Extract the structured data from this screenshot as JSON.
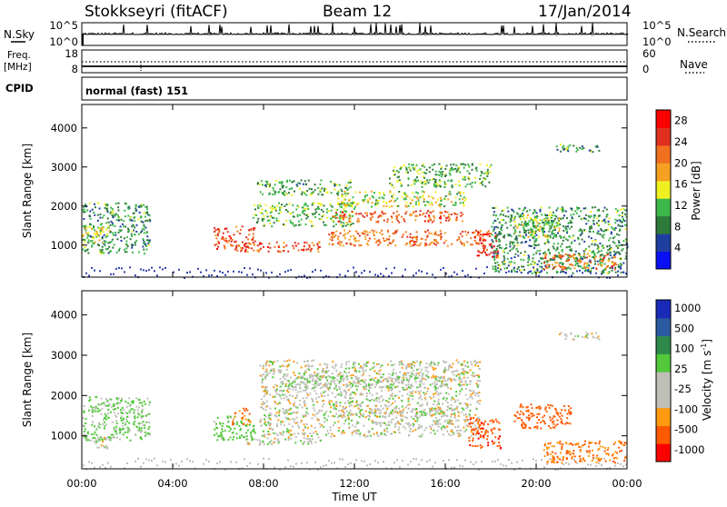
{
  "header": {
    "station": "Stokkseyri (fitACF)",
    "beam": "Beam 12",
    "date": "17/Jan/2014"
  },
  "noise_panel": {
    "left_label": "N.Sky",
    "right_label": "N.Search",
    "left_ticks": [
      "10^5",
      "10^0"
    ],
    "right_ticks": [
      "10^5",
      "10^0"
    ]
  },
  "freq_panel": {
    "left_label_line1": "Freq.",
    "left_label_line2": "[MHz]",
    "right_label": "Nave",
    "left_ticks": [
      "18",
      "8"
    ],
    "right_ticks": [
      "60",
      "0"
    ]
  },
  "cpid": {
    "label": "CPID",
    "value": "normal (fast) 151"
  },
  "colors": {
    "power": [
      "#0a10f5",
      "#1f3fa0",
      "#2e7a3a",
      "#3cb84a",
      "#f0f020",
      "#f5a020",
      "#f07020",
      "#e03020",
      "#ff0000"
    ],
    "velocity": [
      "#ff0000",
      "#ff5a00",
      "#ff9a10",
      "#bfbfb8",
      "#bfbfb8",
      "#52c83a",
      "#2e8a4a",
      "#2a5aa0",
      "#1a2ab8"
    ],
    "ground_scatter": "#bebeb8"
  },
  "chart_data": [
    {
      "type": "heatmap",
      "title": "",
      "xlabel": "Time UT",
      "ylabel": "Slant Range [km]",
      "x_ticks": [
        "00:00",
        "04:00",
        "08:00",
        "12:00",
        "16:00",
        "20:00",
        "00:00"
      ],
      "y_ticks": [
        "1000",
        "2000",
        "3000",
        "4000"
      ],
      "xlim_hours": [
        0,
        24
      ],
      "ylim_km": [
        180,
        4600
      ],
      "colorbar": {
        "label": "Power [dB]",
        "ticks": [
          "4",
          "8",
          "12",
          "16",
          "20",
          "24",
          "28"
        ],
        "range": [
          0,
          30
        ]
      },
      "regions": [
        {
          "t0": 0.0,
          "t1": 3.0,
          "r0": 800,
          "r1": 2100,
          "v": 9
        },
        {
          "t0": 0.0,
          "t1": 1.2,
          "r0": 1100,
          "r1": 1500,
          "v": 15
        },
        {
          "t0": 5.8,
          "t1": 7.6,
          "r0": 900,
          "r1": 1500,
          "v": 25
        },
        {
          "t0": 6.8,
          "t1": 10.5,
          "r0": 850,
          "r1": 1100,
          "v": 24
        },
        {
          "t0": 7.5,
          "t1": 12.0,
          "r0": 1500,
          "r1": 2100,
          "v": 11
        },
        {
          "t0": 7.7,
          "t1": 11.8,
          "r0": 2300,
          "r1": 2700,
          "v": 10
        },
        {
          "t0": 10.8,
          "t1": 18.0,
          "r0": 1000,
          "r1": 1400,
          "v": 22
        },
        {
          "t0": 11.0,
          "t1": 16.8,
          "r0": 1600,
          "r1": 1900,
          "v": 24
        },
        {
          "t0": 11.2,
          "t1": 17.0,
          "r0": 2000,
          "r1": 2400,
          "v": 14
        },
        {
          "t0": 13.5,
          "t1": 18.0,
          "r0": 2500,
          "r1": 3100,
          "v": 11
        },
        {
          "t0": 17.2,
          "t1": 18.3,
          "r0": 700,
          "r1": 1400,
          "v": 27
        },
        {
          "t0": 18.0,
          "t1": 24.0,
          "r0": 300,
          "r1": 2000,
          "v": 9
        },
        {
          "t0": 20.3,
          "t1": 23.5,
          "r0": 400,
          "r1": 800,
          "v": 22
        },
        {
          "t0": 19.0,
          "t1": 21.0,
          "r0": 1200,
          "r1": 1800,
          "v": 14
        },
        {
          "t0": 20.8,
          "t1": 22.8,
          "r0": 3400,
          "r1": 3600,
          "v": 9
        }
      ]
    },
    {
      "type": "heatmap",
      "title": "",
      "xlabel": "Time UT",
      "ylabel": "Slant Range [km]",
      "x_ticks": [
        "00:00",
        "04:00",
        "08:00",
        "12:00",
        "16:00",
        "20:00",
        "00:00"
      ],
      "y_ticks": [
        "1000",
        "2000",
        "3000",
        "4000"
      ],
      "xlim_hours": [
        0,
        24
      ],
      "ylim_km": [
        180,
        4600
      ],
      "colorbar": {
        "label": "Velocity [m s",
        "label_superscript": "-1",
        "label_suffix": "]",
        "ticks": [
          "-1000",
          "-500",
          "-100",
          "-25",
          "25",
          "100",
          "500",
          "1000"
        ]
      },
      "regions": [
        {
          "t0": 0.0,
          "t1": 3.0,
          "r0": 900,
          "r1": 2000,
          "v": 100
        },
        {
          "t0": 0.5,
          "t1": 1.5,
          "r0": 700,
          "r1": 1000,
          "v": 0
        },
        {
          "t0": 5.8,
          "t1": 7.6,
          "r0": 900,
          "r1": 1500,
          "v": 150
        },
        {
          "t0": 6.6,
          "t1": 7.4,
          "r0": 1300,
          "r1": 1700,
          "v": -300
        },
        {
          "t0": 7.2,
          "t1": 10.5,
          "r0": 800,
          "r1": 1000,
          "v": 0
        },
        {
          "t0": 7.8,
          "t1": 17.5,
          "r0": 1000,
          "r1": 2900,
          "v": 0
        },
        {
          "t0": 12.0,
          "t1": 16.8,
          "r0": 1500,
          "r1": 1700,
          "v": 0
        },
        {
          "t0": 17.0,
          "t1": 18.4,
          "r0": 700,
          "r1": 1500,
          "v": -700
        },
        {
          "t0": 19.0,
          "t1": 21.5,
          "r0": 1200,
          "r1": 1800,
          "v": -400
        },
        {
          "t0": 20.3,
          "t1": 24.0,
          "r0": 350,
          "r1": 900,
          "v": -300
        },
        {
          "t0": 21.0,
          "t1": 22.8,
          "r0": 3400,
          "r1": 3600,
          "v": 0
        },
        {
          "t0": 9.0,
          "t1": 16.0,
          "r0": 2200,
          "r1": 2500,
          "v": 50
        }
      ]
    }
  ]
}
